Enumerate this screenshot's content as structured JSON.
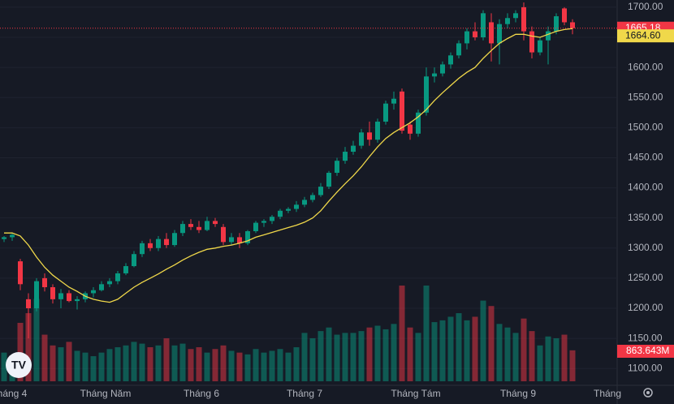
{
  "chart_data": {
    "type": "candlestick",
    "open": [
      1315,
      1318,
      1278,
      1215,
      1200,
      1250,
      1235,
      1215,
      1225,
      1212,
      1215,
      1225,
      1230,
      1240,
      1245,
      1258,
      1270,
      1290,
      1308,
      1300,
      1315,
      1305,
      1325,
      1340,
      1335,
      1330,
      1345,
      1335,
      1310,
      1318,
      1308,
      1328,
      1342,
      1345,
      1352,
      1362,
      1365,
      1372,
      1380,
      1388,
      1402,
      1425,
      1445,
      1460,
      1470,
      1492,
      1480,
      1510,
      1540,
      1560,
      1505,
      1490,
      1525,
      1585,
      1590,
      1605,
      1620,
      1640,
      1660,
      1650,
      1675,
      1640,
      1672,
      1682,
      1700,
      1660,
      1625,
      1645,
      1660,
      1698,
      1675
    ],
    "high": [
      1320,
      1325,
      1282,
      1225,
      1250,
      1258,
      1240,
      1232,
      1230,
      1220,
      1228,
      1235,
      1245,
      1250,
      1262,
      1275,
      1295,
      1312,
      1315,
      1320,
      1325,
      1330,
      1345,
      1348,
      1345,
      1352,
      1350,
      1340,
      1325,
      1325,
      1330,
      1345,
      1348,
      1355,
      1365,
      1368,
      1378,
      1385,
      1392,
      1408,
      1428,
      1450,
      1468,
      1478,
      1498,
      1510,
      1515,
      1545,
      1560,
      1565,
      1510,
      1530,
      1600,
      1600,
      1610,
      1625,
      1645,
      1665,
      1675,
      1695,
      1690,
      1680,
      1690,
      1695,
      1708,
      1668,
      1650,
      1668,
      1690,
      1700,
      1680
    ],
    "low": [
      1310,
      1312,
      1230,
      1150,
      1195,
      1228,
      1208,
      1200,
      1210,
      1198,
      1210,
      1218,
      1228,
      1235,
      1240,
      1255,
      1268,
      1285,
      1295,
      1295,
      1300,
      1302,
      1320,
      1330,
      1325,
      1328,
      1335,
      1305,
      1305,
      1300,
      1305,
      1325,
      1335,
      1340,
      1348,
      1358,
      1360,
      1368,
      1376,
      1385,
      1398,
      1420,
      1440,
      1455,
      1465,
      1470,
      1475,
      1505,
      1530,
      1490,
      1480,
      1485,
      1520,
      1575,
      1585,
      1598,
      1615,
      1630,
      1645,
      1645,
      1610,
      1605,
      1665,
      1675,
      1645,
      1615,
      1620,
      1605,
      1655,
      1670,
      1655
    ],
    "close": [
      1318,
      1322,
      1240,
      1200,
      1245,
      1235,
      1215,
      1225,
      1212,
      1215,
      1225,
      1230,
      1240,
      1245,
      1258,
      1270,
      1290,
      1308,
      1300,
      1315,
      1305,
      1325,
      1340,
      1335,
      1330,
      1345,
      1340,
      1310,
      1318,
      1308,
      1328,
      1342,
      1345,
      1352,
      1362,
      1365,
      1372,
      1380,
      1388,
      1402,
      1425,
      1445,
      1460,
      1470,
      1492,
      1480,
      1510,
      1540,
      1548,
      1495,
      1490,
      1525,
      1585,
      1590,
      1605,
      1620,
      1640,
      1660,
      1650,
      1690,
      1640,
      1672,
      1682,
      1690,
      1660,
      1625,
      1645,
      1660,
      1685,
      1675,
      1665.18
    ],
    "volume": [
      800,
      700,
      1630,
      1900,
      2300,
      1300,
      1000,
      950,
      1100,
      850,
      800,
      700,
      800,
      900,
      950,
      1000,
      1100,
      1050,
      950,
      1000,
      1200,
      1000,
      1050,
      900,
      950,
      800,
      900,
      1000,
      850,
      800,
      750,
      900,
      800,
      850,
      900,
      800,
      950,
      1350,
      1200,
      1400,
      1500,
      1300,
      1350,
      1350,
      1400,
      1500,
      1550,
      1450,
      1600,
      2670,
      1500,
      1350,
      2670,
      1650,
      1700,
      1800,
      1900,
      1700,
      1800,
      2250,
      2100,
      1600,
      1500,
      1350,
      1750,
      1400,
      1000,
      1250,
      1200,
      1300,
      863.643
    ],
    "volume_value_labels": [
      null,
      null,
      null,
      null,
      null,
      null,
      null,
      null,
      null,
      null,
      null,
      null,
      null,
      null,
      null,
      null,
      null,
      null,
      null,
      null,
      null,
      null,
      null,
      null,
      null,
      null,
      null,
      null,
      null,
      null,
      null,
      null,
      null,
      null,
      null,
      null,
      null,
      null,
      null,
      null,
      null,
      null,
      null,
      null,
      null,
      null,
      null,
      null,
      null,
      null,
      null,
      null,
      null,
      null,
      null,
      null,
      null,
      null,
      null,
      null,
      null,
      null,
      null,
      null,
      null,
      null,
      null,
      null,
      null,
      null,
      "863.643M"
    ],
    "ma": {
      "color": "#f0d84a",
      "values": [
        1325,
        1325,
        1320,
        1305,
        1285,
        1268,
        1255,
        1245,
        1235,
        1228,
        1220,
        1215,
        1212,
        1210,
        1215,
        1225,
        1235,
        1243,
        1250,
        1257,
        1265,
        1272,
        1280,
        1287,
        1293,
        1298,
        1300,
        1303,
        1305,
        1308,
        1312,
        1318,
        1322,
        1326,
        1330,
        1334,
        1338,
        1343,
        1350,
        1362,
        1378,
        1393,
        1407,
        1420,
        1435,
        1452,
        1468,
        1482,
        1492,
        1500,
        1508,
        1518,
        1530,
        1545,
        1558,
        1570,
        1582,
        1592,
        1600,
        1615,
        1628,
        1640,
        1648,
        1655,
        1655,
        1652,
        1650,
        1655,
        1660,
        1663,
        1664.6
      ],
      "value_labels": [
        null,
        null,
        null,
        null,
        null,
        null,
        null,
        null,
        null,
        null,
        null,
        null,
        null,
        null,
        null,
        null,
        null,
        null,
        null,
        null,
        null,
        null,
        null,
        null,
        null,
        null,
        null,
        null,
        null,
        null,
        null,
        null,
        null,
        null,
        null,
        null,
        null,
        null,
        null,
        null,
        null,
        null,
        null,
        null,
        null,
        null,
        null,
        null,
        null,
        null,
        null,
        null,
        null,
        null,
        null,
        null,
        null,
        null,
        null,
        null,
        null,
        null,
        null,
        null,
        null,
        null,
        null,
        null,
        null,
        null,
        "1664.60"
      ]
    },
    "up_color": "#089981",
    "down_color": "#f23645",
    "ylim": [
      1072,
      1712
    ],
    "yticks": [
      {
        "value": 1100,
        "label": "1100.00"
      },
      {
        "value": 1150,
        "label": "1150.00"
      },
      {
        "value": 1200,
        "label": "1200.00"
      },
      {
        "value": 1250,
        "label": "1250.00"
      },
      {
        "value": 1300,
        "label": "1300.00"
      },
      {
        "value": 1350,
        "label": "1350.00"
      },
      {
        "value": 1400,
        "label": "1400.00"
      },
      {
        "value": 1450,
        "label": "1450.00"
      },
      {
        "value": 1500,
        "label": "1500.00"
      },
      {
        "value": 1550,
        "label": "1550.00"
      },
      {
        "value": 1600,
        "label": "1600.00"
      },
      {
        "value": 1650,
        "label": "1650.00"
      },
      {
        "value": 1700,
        "label": "1700.00"
      }
    ],
    "xlim": [
      -0.5,
      82.5
    ],
    "xticks": [
      {
        "value": 1,
        "label": "háng 4"
      },
      {
        "value": 12.5,
        "label": "Tháng Năm"
      },
      {
        "value": 24.3,
        "label": "Tháng 6"
      },
      {
        "value": 37,
        "label": "Tháng 7"
      },
      {
        "value": 50.7,
        "label": "Tháng Tám"
      },
      {
        "value": 63.3,
        "label": "Tháng 9"
      },
      {
        "value": 74.3,
        "label": "Tháng"
      }
    ]
  }
}
